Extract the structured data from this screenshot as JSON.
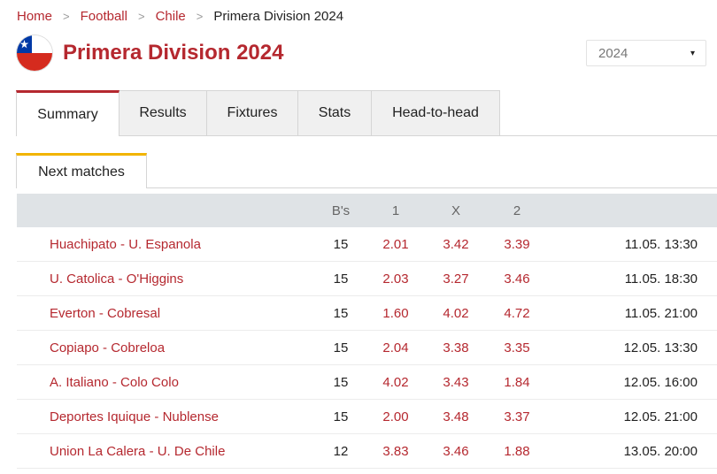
{
  "breadcrumb": {
    "items": [
      "Home",
      "Football",
      "Chile"
    ],
    "current": "Primera Division 2024",
    "separator": ">"
  },
  "league": {
    "title": "Primera Division 2024",
    "flag": "chile-flag-icon"
  },
  "season_select": {
    "value": "2024",
    "caret": "▾"
  },
  "tabs": [
    {
      "label": "Summary",
      "active": true
    },
    {
      "label": "Results",
      "active": false
    },
    {
      "label": "Fixtures",
      "active": false
    },
    {
      "label": "Stats",
      "active": false
    },
    {
      "label": "Head-to-head",
      "active": false
    }
  ],
  "subtab": {
    "label": "Next matches"
  },
  "table": {
    "headers": {
      "match": "",
      "bs": "B's",
      "one": "1",
      "x": "X",
      "two": "2",
      "time": ""
    },
    "rows": [
      {
        "match": "Huachipato - U. Espanola",
        "bs": "15",
        "one": "2.01",
        "x": "3.42",
        "two": "3.39",
        "time": "11.05. 13:30"
      },
      {
        "match": "U. Catolica - O'Higgins",
        "bs": "15",
        "one": "2.03",
        "x": "3.27",
        "two": "3.46",
        "time": "11.05. 18:30"
      },
      {
        "match": "Everton - Cobresal",
        "bs": "15",
        "one": "1.60",
        "x": "4.02",
        "two": "4.72",
        "time": "11.05. 21:00"
      },
      {
        "match": "Copiapo - Cobreloa",
        "bs": "15",
        "one": "2.04",
        "x": "3.38",
        "two": "3.35",
        "time": "12.05. 13:30"
      },
      {
        "match": "A. Italiano - Colo Colo",
        "bs": "15",
        "one": "4.02",
        "x": "3.43",
        "two": "1.84",
        "time": "12.05. 16:00"
      },
      {
        "match": "Deportes Iquique - Nublense",
        "bs": "15",
        "one": "2.00",
        "x": "3.48",
        "two": "3.37",
        "time": "12.05. 21:00"
      },
      {
        "match": "Union La Calera - U. De Chile",
        "bs": "12",
        "one": "3.83",
        "x": "3.46",
        "two": "1.88",
        "time": "13.05. 20:00"
      }
    ]
  },
  "colors": {
    "accent": "#b5282f",
    "subtab_accent": "#f2b400",
    "header_bg": "#dfe3e6"
  }
}
